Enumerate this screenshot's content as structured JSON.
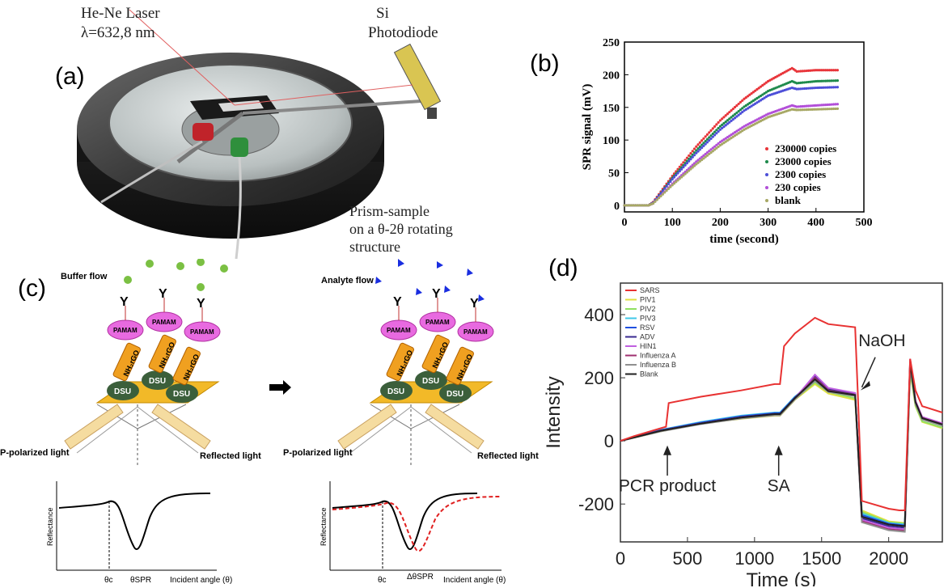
{
  "panel_a": {
    "label": "(a)",
    "laser_line1": "He-Ne Laser",
    "laser_line2": "λ=632,8 nm",
    "pd_line1": "Si",
    "pd_line2": "Photodiode",
    "prism_line1": "Prism-sample",
    "prism_line2": "on a θ-2θ rotating",
    "prism_line3": "structure"
  },
  "panel_c": {
    "label": "(c)",
    "buffer_flow": "Buffer flow",
    "analyte_flow": "Analyte flow",
    "pamam": "PAMAM",
    "nh2rgo": "NH₂rGO",
    "dsu": "DSU",
    "p_polarized": "P-polarized  light",
    "reflected": "Reflected light",
    "reflectance": "Reflectance",
    "theta_c": "θc",
    "theta_spr": "θSPR",
    "delta_theta": "ΔθSPR",
    "incident_angle": "Incident angle (θ)"
  },
  "chart_data": [
    {
      "panel": "(b)",
      "type": "scatter",
      "xlabel": "time (second)",
      "ylabel": "SPR signal (mV)",
      "xlim": [
        0,
        500
      ],
      "ylim": [
        -10,
        250
      ],
      "xticks": [
        0,
        100,
        200,
        300,
        400,
        500
      ],
      "yticks": [
        0,
        50,
        100,
        150,
        200,
        250
      ],
      "legend_position": "lower-right",
      "series": [
        {
          "name": "230000 copies",
          "color": "#e8353a",
          "points": [
            [
              0,
              0
            ],
            [
              50,
              0
            ],
            [
              60,
              5
            ],
            [
              100,
              45
            ],
            [
              150,
              90
            ],
            [
              200,
              130
            ],
            [
              250,
              163
            ],
            [
              300,
              190
            ],
            [
              350,
              210
            ],
            [
              360,
              205
            ],
            [
              400,
              207
            ],
            [
              445,
              207
            ]
          ]
        },
        {
          "name": "23000 copies",
          "color": "#1e8a4c",
          "points": [
            [
              0,
              0
            ],
            [
              50,
              0
            ],
            [
              60,
              4
            ],
            [
              100,
              42
            ],
            [
              150,
              84
            ],
            [
              200,
              121
            ],
            [
              250,
              151
            ],
            [
              300,
              175
            ],
            [
              350,
              190
            ],
            [
              360,
              187
            ],
            [
              400,
              190
            ],
            [
              445,
              191
            ]
          ]
        },
        {
          "name": "2300 copies",
          "color": "#4d4fd8",
          "points": [
            [
              0,
              0
            ],
            [
              50,
              0
            ],
            [
              60,
              4
            ],
            [
              100,
              40
            ],
            [
              150,
              80
            ],
            [
              200,
              116
            ],
            [
              250,
              145
            ],
            [
              300,
              168
            ],
            [
              350,
              180
            ],
            [
              360,
              178
            ],
            [
              400,
              180
            ],
            [
              445,
              181
            ]
          ]
        },
        {
          "name": "230 copies",
          "color": "#b24fd8",
          "points": [
            [
              0,
              0
            ],
            [
              50,
              0
            ],
            [
              60,
              3
            ],
            [
              100,
              33
            ],
            [
              150,
              67
            ],
            [
              200,
              97
            ],
            [
              250,
              121
            ],
            [
              300,
              140
            ],
            [
              350,
              153
            ],
            [
              360,
              151
            ],
            [
              400,
              153
            ],
            [
              445,
              155
            ]
          ]
        },
        {
          "name": "blank",
          "color": "#a7a865",
          "points": [
            [
              0,
              0
            ],
            [
              50,
              0
            ],
            [
              60,
              3
            ],
            [
              100,
              31
            ],
            [
              150,
              63
            ],
            [
              200,
              92
            ],
            [
              250,
              116
            ],
            [
              300,
              135
            ],
            [
              350,
              147
            ],
            [
              360,
              146
            ],
            [
              400,
              147
            ],
            [
              445,
              148
            ]
          ]
        }
      ]
    },
    {
      "panel": "(d)",
      "type": "line",
      "xlabel": "Time (s)",
      "ylabel": "Intensity",
      "xlim": [
        0,
        2400
      ],
      "ylim": [
        -320,
        500
      ],
      "xticks": [
        0,
        500,
        1000,
        1500,
        2000
      ],
      "yticks": [
        -200,
        0,
        200,
        400
      ],
      "legend_position": "top-left",
      "annotations": [
        "PCR product",
        "SA",
        "NaOH"
      ],
      "series": [
        {
          "name": "SARS",
          "color": "#e83232",
          "points": [
            [
              0,
              0
            ],
            [
              100,
              15
            ],
            [
              300,
              40
            ],
            [
              340,
              45
            ],
            [
              360,
              120
            ],
            [
              600,
              140
            ],
            [
              900,
              160
            ],
            [
              1150,
              180
            ],
            [
              1190,
              180
            ],
            [
              1220,
              300
            ],
            [
              1300,
              340
            ],
            [
              1450,
              390
            ],
            [
              1550,
              370
            ],
            [
              1750,
              360
            ],
            [
              1770,
              150
            ],
            [
              1800,
              -190
            ],
            [
              2000,
              -215
            ],
            [
              2080,
              -220
            ],
            [
              2120,
              -220
            ],
            [
              2160,
              260
            ],
            [
              2200,
              160
            ],
            [
              2250,
              110
            ],
            [
              2400,
              90
            ]
          ]
        },
        {
          "name": "PIV1",
          "color": "#e0e040",
          "points": [
            [
              0,
              0
            ],
            [
              300,
              30
            ],
            [
              600,
              55
            ],
            [
              900,
              70
            ],
            [
              1150,
              80
            ],
            [
              1190,
              80
            ],
            [
              1300,
              130
            ],
            [
              1450,
              180
            ],
            [
              1550,
              150
            ],
            [
              1750,
              130
            ],
            [
              1800,
              -220
            ],
            [
              2000,
              -255
            ],
            [
              2120,
              -260
            ],
            [
              2160,
              220
            ],
            [
              2200,
              110
            ],
            [
              2250,
              60
            ],
            [
              2400,
              40
            ]
          ]
        },
        {
          "name": "PIV2",
          "color": "#90e060",
          "points": [
            [
              0,
              0
            ],
            [
              300,
              32
            ],
            [
              600,
              57
            ],
            [
              900,
              72
            ],
            [
              1150,
              82
            ],
            [
              1190,
              82
            ],
            [
              1300,
              132
            ],
            [
              1450,
              185
            ],
            [
              1550,
              155
            ],
            [
              1750,
              135
            ],
            [
              1800,
              -225
            ],
            [
              2000,
              -258
            ],
            [
              2120,
              -262
            ],
            [
              2160,
              225
            ],
            [
              2200,
              112
            ],
            [
              2250,
              62
            ],
            [
              2400,
              42
            ]
          ]
        },
        {
          "name": "PIV3",
          "color": "#40c8e8",
          "points": [
            [
              0,
              0
            ],
            [
              300,
              35
            ],
            [
              600,
              60
            ],
            [
              900,
              80
            ],
            [
              1150,
              90
            ],
            [
              1190,
              90
            ],
            [
              1300,
              140
            ],
            [
              1450,
              190
            ],
            [
              1550,
              160
            ],
            [
              1750,
              145
            ],
            [
              1800,
              -230
            ],
            [
              2000,
              -260
            ],
            [
              2120,
              -265
            ],
            [
              2160,
              240
            ],
            [
              2200,
              120
            ],
            [
              2250,
              70
            ],
            [
              2400,
              50
            ]
          ]
        },
        {
          "name": "RSV",
          "color": "#2050e0",
          "points": [
            [
              0,
              0
            ],
            [
              300,
              34
            ],
            [
              600,
              58
            ],
            [
              900,
              78
            ],
            [
              1150,
              88
            ],
            [
              1190,
              88
            ],
            [
              1300,
              138
            ],
            [
              1450,
              195
            ],
            [
              1550,
              162
            ],
            [
              1750,
              148
            ],
            [
              1800,
              -235
            ],
            [
              2000,
              -262
            ],
            [
              2120,
              -268
            ],
            [
              2160,
              250
            ],
            [
              2200,
              122
            ],
            [
              2250,
              72
            ],
            [
              2400,
              52
            ]
          ]
        },
        {
          "name": "ADV",
          "color": "#3a2a90",
          "points": [
            [
              0,
              0
            ],
            [
              300,
              33
            ],
            [
              600,
              56
            ],
            [
              900,
              76
            ],
            [
              1150,
              86
            ],
            [
              1190,
              86
            ],
            [
              1300,
              136
            ],
            [
              1450,
              205
            ],
            [
              1550,
              165
            ],
            [
              1750,
              150
            ],
            [
              1800,
              -245
            ],
            [
              2000,
              -270
            ],
            [
              2120,
              -275
            ],
            [
              2160,
              255
            ],
            [
              2200,
              125
            ],
            [
              2250,
              74
            ],
            [
              2400,
              54
            ]
          ]
        },
        {
          "name": "HIN1",
          "color": "#c060e0",
          "points": [
            [
              0,
              0
            ],
            [
              300,
              32
            ],
            [
              600,
              55
            ],
            [
              900,
              74
            ],
            [
              1150,
              84
            ],
            [
              1190,
              84
            ],
            [
              1300,
              134
            ],
            [
              1450,
              210
            ],
            [
              1550,
              168
            ],
            [
              1750,
              152
            ],
            [
              1800,
              -250
            ],
            [
              2000,
              -275
            ],
            [
              2120,
              -280
            ],
            [
              2160,
              260
            ],
            [
              2200,
              128
            ],
            [
              2250,
              76
            ],
            [
              2400,
              56
            ]
          ]
        },
        {
          "name": "Influenza A",
          "color": "#a03070",
          "points": [
            [
              0,
              0
            ],
            [
              300,
              31
            ],
            [
              600,
              54
            ],
            [
              900,
              72
            ],
            [
              1150,
              82
            ],
            [
              1190,
              82
            ],
            [
              1300,
              132
            ],
            [
              1450,
              200
            ],
            [
              1550,
              160
            ],
            [
              1750,
              146
            ],
            [
              1800,
              -255
            ],
            [
              2000,
              -280
            ],
            [
              2120,
              -285
            ],
            [
              2160,
              245
            ],
            [
              2200,
              124
            ],
            [
              2250,
              73
            ],
            [
              2400,
              53
            ]
          ]
        },
        {
          "name": "Influenza B",
          "color": "#909090",
          "points": [
            [
              0,
              0
            ],
            [
              300,
              30
            ],
            [
              600,
              53
            ],
            [
              900,
              71
            ],
            [
              1150,
              81
            ],
            [
              1190,
              81
            ],
            [
              1300,
              131
            ],
            [
              1450,
              190
            ],
            [
              1550,
              155
            ],
            [
              1750,
              142
            ],
            [
              1800,
              -258
            ],
            [
              2000,
              -283
            ],
            [
              2120,
              -288
            ],
            [
              2160,
              235
            ],
            [
              2200,
              118
            ],
            [
              2250,
              68
            ],
            [
              2400,
              48
            ]
          ]
        },
        {
          "name": "Blank",
          "color": "#202020",
          "points": [
            [
              0,
              0
            ],
            [
              300,
              32
            ],
            [
              600,
              55
            ],
            [
              900,
              74
            ],
            [
              1150,
              85
            ],
            [
              1190,
              85
            ],
            [
              1300,
              135
            ],
            [
              1450,
              195
            ],
            [
              1550,
              158
            ],
            [
              1750,
              145
            ],
            [
              1800,
              -240
            ],
            [
              2000,
              -265
            ],
            [
              2120,
              -270
            ],
            [
              2160,
              250
            ],
            [
              2200,
              123
            ],
            [
              2250,
              72
            ],
            [
              2400,
              52
            ]
          ]
        }
      ]
    }
  ]
}
